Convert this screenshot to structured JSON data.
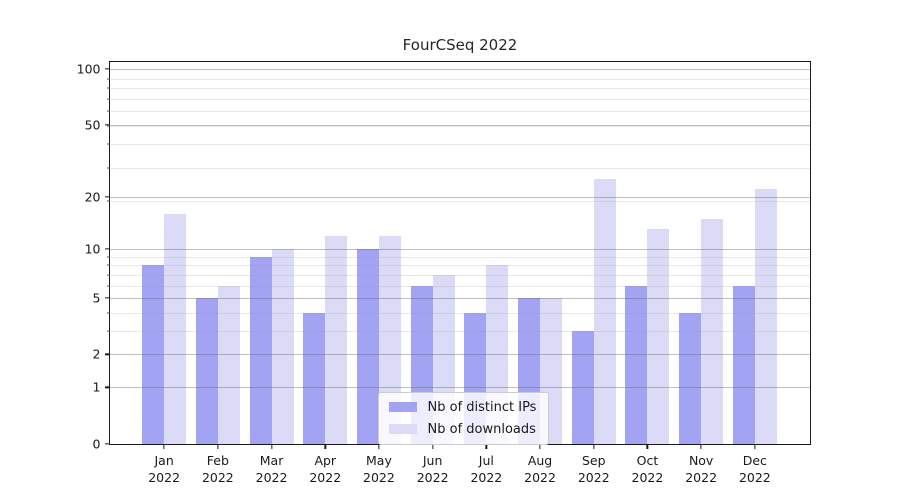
{
  "title": "FourCSeq 2022",
  "chart_data": {
    "type": "bar",
    "title": "FourCSeq 2022",
    "categories": [
      "Jan 2022",
      "Feb 2022",
      "Mar 2022",
      "Apr 2022",
      "May 2022",
      "Jun 2022",
      "Jul 2022",
      "Aug 2022",
      "Sep 2022",
      "Oct 2022",
      "Nov 2022",
      "Dec 2022"
    ],
    "series": [
      {
        "name": "Nb of distinct IPs",
        "color": "#a3a3f3",
        "values": [
          8,
          5,
          9,
          4,
          10,
          6,
          4,
          5,
          3,
          6,
          4,
          6
        ]
      },
      {
        "name": "Nb of downloads",
        "color": "#dbdbf8",
        "values": [
          16,
          6,
          10,
          12,
          12,
          7,
          8,
          5,
          25,
          13,
          15,
          22
        ]
      }
    ],
    "xlabel": "",
    "ylabel": "",
    "y_scale": "log10(value+1)",
    "y_ticks": [
      0,
      1,
      2,
      5,
      10,
      20,
      50,
      100
    ],
    "y_minor_ticks": [
      3,
      4,
      6,
      7,
      8,
      9,
      19,
      29,
      39,
      49,
      59,
      69,
      79,
      89
    ],
    "ylim": [
      0,
      110
    ],
    "grid": "horizontal",
    "legend_position": "inside-lower-center"
  },
  "colors": {
    "bar_distinct_ips": "#a3a3f3",
    "bar_downloads": "#dbdbf8",
    "grid_major": "#c4c4c4",
    "grid_minor": "#ebebeb",
    "axis": "#1a1a1a",
    "background": "#ffffff"
  }
}
